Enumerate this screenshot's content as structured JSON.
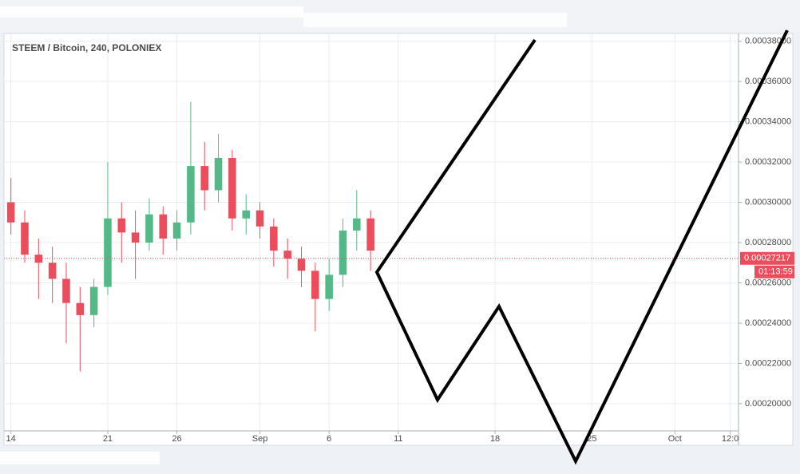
{
  "chart_data": {
    "type": "candlestick",
    "title": "STEEM / Bitcoin, 240, POLONIEX",
    "x": [
      0,
      1,
      2,
      3,
      4,
      5,
      6,
      7,
      8,
      9,
      10,
      11,
      12,
      13,
      14,
      15,
      16,
      17,
      18,
      19,
      20,
      21,
      22,
      23,
      24,
      25,
      26
    ],
    "open": [
      0.0003,
      0.00029,
      0.000274,
      0.00027,
      0.000262,
      0.00025,
      0.000244,
      0.000258,
      0.000292,
      0.000285,
      0.00028,
      0.000294,
      0.000282,
      0.00029,
      0.000318,
      0.000306,
      0.000322,
      0.000292,
      0.000296,
      0.000288,
      0.000276,
      0.000272,
      0.000266,
      0.000252,
      0.000264,
      0.000286,
      0.000292
    ],
    "high": [
      0.000312,
      0.000296,
      0.000282,
      0.000278,
      0.00027,
      0.000258,
      0.000262,
      0.00032,
      0.0003,
      0.000296,
      0.000302,
      0.000298,
      0.000296,
      0.00035,
      0.00033,
      0.000334,
      0.000326,
      0.000304,
      0.0003,
      0.000292,
      0.000282,
      0.000278,
      0.00027,
      0.000272,
      0.000292,
      0.000306,
      0.000296
    ],
    "low": [
      0.000284,
      0.00027,
      0.000252,
      0.00025,
      0.00023,
      0.000216,
      0.000238,
      0.000254,
      0.00027,
      0.000262,
      0.000276,
      0.000274,
      0.000276,
      0.000284,
      0.000296,
      0.0003,
      0.000286,
      0.000284,
      0.000282,
      0.000268,
      0.000262,
      0.000258,
      0.000236,
      0.000246,
      0.000258,
      0.000276,
      0.000266
    ],
    "close": [
      0.00029,
      0.000274,
      0.00027,
      0.000262,
      0.00025,
      0.000244,
      0.000258,
      0.000292,
      0.000285,
      0.00028,
      0.000294,
      0.000282,
      0.00029,
      0.000318,
      0.000306,
      0.000322,
      0.000292,
      0.000296,
      0.000288,
      0.000276,
      0.000272,
      0.000266,
      0.000252,
      0.000264,
      0.000286,
      0.000292,
      0.000276
    ],
    "up_color": "#53b987",
    "down_color": "#eb4d5c",
    "last_price": 0.00027217,
    "countdown": "01:13:59",
    "xlim": [
      -0.5,
      52.6
    ],
    "xticks": [
      {
        "value": 0,
        "label": "14"
      },
      {
        "value": 7,
        "label": "21"
      },
      {
        "value": 12,
        "label": "26"
      },
      {
        "value": 18,
        "label": "Sep"
      },
      {
        "value": 23,
        "label": "6"
      },
      {
        "value": 28,
        "label": "11"
      },
      {
        "value": 35,
        "label": "18"
      },
      {
        "value": 42,
        "label": "25"
      },
      {
        "value": 48,
        "label": "Oct"
      },
      {
        "value": 52,
        "label": "12:0"
      }
    ],
    "ylim": [
      0.0001865,
      0.0003838
    ],
    "yticks": [
      {
        "value": 0.0002,
        "label": "0.00020000"
      },
      {
        "value": 0.00022,
        "label": "0.00022000"
      },
      {
        "value": 0.00024,
        "label": "0.00024000"
      },
      {
        "value": 0.00026,
        "label": "0.00026000"
      },
      {
        "value": 0.00028,
        "label": "0.00028000"
      },
      {
        "value": 0.0003,
        "label": "0.00030000"
      },
      {
        "value": 0.00032,
        "label": "0.00032000"
      },
      {
        "value": 0.00034,
        "label": "0.00034000"
      },
      {
        "value": 0.00036,
        "label": "0.00036000"
      },
      {
        "value": 0.00038,
        "label": "0.00038000"
      }
    ],
    "grid": true
  }
}
